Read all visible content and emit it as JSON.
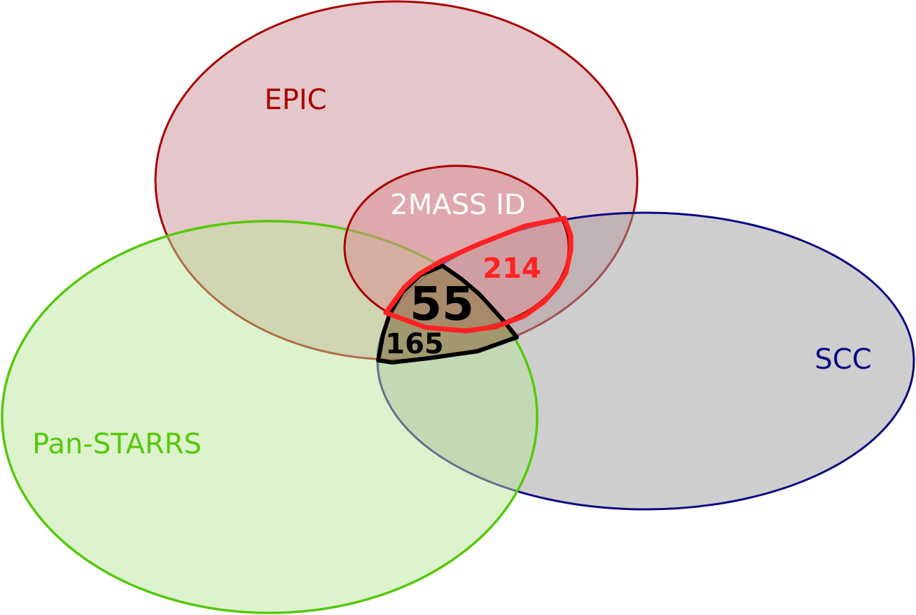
{
  "sets": {
    "epic": {
      "label": "EPIC",
      "color": "#a80000",
      "fill": "#c98f95"
    },
    "twomass": {
      "label": "2MASS ID",
      "color": "#a80000",
      "fill": "#d9888e",
      "label_color": "#ffffff"
    },
    "scc": {
      "label": "SCC",
      "color": "#0a0a82",
      "fill": "#a3a3a6"
    },
    "panstarrs": {
      "label": "Pan-STARRS",
      "color": "#55c80a",
      "fill": "#c7eeac"
    }
  },
  "regions": {
    "red_outline": {
      "count": "214",
      "color": "#ff2222"
    },
    "black_outline": {
      "count": "165",
      "color": "#000000"
    },
    "center": {
      "count": "55",
      "color": "#000000"
    }
  }
}
